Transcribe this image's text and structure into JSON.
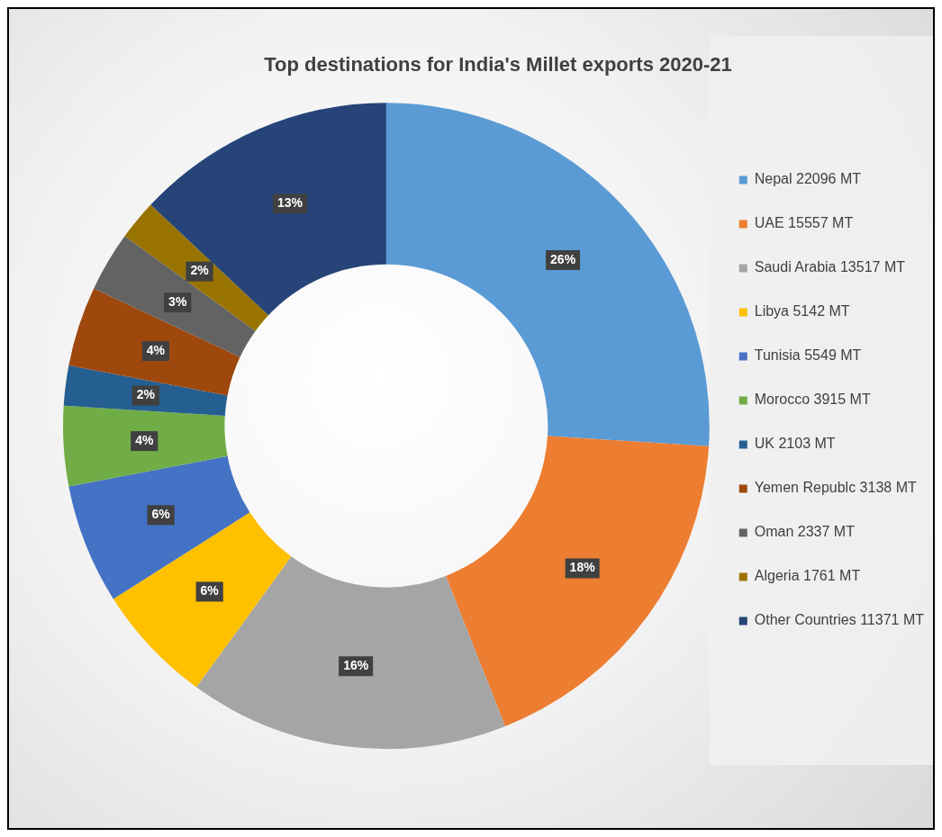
{
  "chart_data": {
    "type": "donut",
    "title": "Top destinations for India's Millet exports 2020-21",
    "categories": [
      "Nepal 22096 MT",
      "UAE 15557 MT",
      "Saudi Arabia 13517 MT",
      "Libya 5142 MT",
      "Tunisia 5549 MT",
      "Morocco 3915 MT",
      "UK 2103 MT",
      "Yemen Republc 3138 MT",
      "Oman 2337 MT",
      "Algeria 1761 MT",
      "Other Countries 11371 MT"
    ],
    "values": [
      26,
      18,
      16,
      6,
      6,
      4,
      2,
      4,
      3,
      2,
      13
    ],
    "colors": [
      "#5b9bd5",
      "#ed7d31",
      "#a5a5a5",
      "#ffc000",
      "#4472c4",
      "#70ad47",
      "#255e91",
      "#9e480e",
      "#636363",
      "#997300",
      "#264478"
    ],
    "value_labels": [
      "26%",
      "18%",
      "16%",
      "6%",
      "6%",
      "4%",
      "2%",
      "4%",
      "3%",
      "2%",
      "13%"
    ],
    "legend": "right"
  }
}
